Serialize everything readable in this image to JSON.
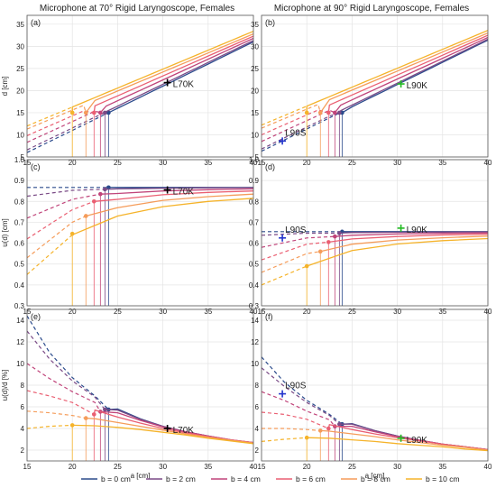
{
  "figure": {
    "left_title": "Microphone at 70° Rigid Laryngoscope, Females",
    "right_title": "Microphone at 90° Rigid Laryngoscope, Females"
  },
  "legend": {
    "items": [
      {
        "label": "b = 0 cm",
        "color": "#2b4b8c"
      },
      {
        "label": "b = 2 cm",
        "color": "#7a4a86"
      },
      {
        "label": "b = 4 cm",
        "color": "#c0447a"
      },
      {
        "label": "b = 6 cm",
        "color": "#ea5f72"
      },
      {
        "label": "b = 8 cm",
        "color": "#f59c5a"
      },
      {
        "label": "b = 10 cm",
        "color": "#f5b32a"
      }
    ]
  },
  "chart_data": [
    {
      "panel": "(a)",
      "type": "line",
      "xlabel": "",
      "ylabel": "d [cm]",
      "xlim": [
        15,
        40
      ],
      "ylim": [
        5,
        37
      ],
      "xticks": [
        15,
        20,
        25,
        30,
        35,
        40
      ],
      "yticks": [
        5,
        10,
        15,
        20,
        25,
        30,
        35
      ],
      "series": [
        {
          "b": 0,
          "x": [
            15,
            40
          ],
          "y": [
            6.0,
            31.0
          ],
          "marker": [
            24.0,
            15.0
          ]
        },
        {
          "b": 2,
          "x": [
            15,
            40
          ],
          "y": [
            6.6,
            31.3
          ],
          "marker": [
            23.6,
            15.0
          ]
        },
        {
          "b": 4,
          "x": [
            15,
            40
          ],
          "y": [
            8.3,
            31.8
          ],
          "marker": [
            23.1,
            15.0
          ]
        },
        {
          "b": 6,
          "x": [
            15,
            40
          ],
          "y": [
            9.8,
            32.3
          ],
          "marker": [
            22.4,
            15.0
          ]
        },
        {
          "b": 8,
          "x": [
            15,
            40
          ],
          "y": [
            11.3,
            32.8
          ],
          "marker": [
            21.5,
            15.0
          ]
        },
        {
          "b": 10,
          "x": [
            15,
            40
          ],
          "y": [
            12.0,
            33.4
          ],
          "marker": [
            20.0,
            15.0
          ]
        }
      ],
      "annotations": [
        {
          "label": "L70K",
          "x": 30.5,
          "y": 21.8,
          "color": "#000000"
        }
      ]
    },
    {
      "panel": "(b)",
      "type": "line",
      "xlabel": "",
      "ylabel": "",
      "xlim": [
        15,
        40
      ],
      "ylim": [
        5,
        37
      ],
      "xticks": [
        15,
        20,
        25,
        30,
        35,
        40
      ],
      "yticks": [
        5,
        10,
        15,
        20,
        25,
        30,
        35
      ],
      "series": [
        {
          "b": 0,
          "x": [
            15,
            40
          ],
          "y": [
            6.3,
            31.4
          ],
          "marker": [
            23.9,
            15.0
          ]
        },
        {
          "b": 2,
          "x": [
            15,
            40
          ],
          "y": [
            6.8,
            31.6
          ],
          "marker": [
            23.6,
            15.0
          ]
        },
        {
          "b": 4,
          "x": [
            15,
            40
          ],
          "y": [
            8.5,
            32.0
          ],
          "marker": [
            23.1,
            15.0
          ]
        },
        {
          "b": 6,
          "x": [
            15,
            40
          ],
          "y": [
            10.0,
            32.5
          ],
          "marker": [
            22.4,
            15.0
          ]
        },
        {
          "b": 8,
          "x": [
            15,
            40
          ],
          "y": [
            11.5,
            33.0
          ],
          "marker": [
            21.5,
            15.0
          ]
        },
        {
          "b": 10,
          "x": [
            15,
            40
          ],
          "y": [
            12.2,
            33.6
          ],
          "marker": [
            20.0,
            15.0
          ]
        }
      ],
      "annotations": [
        {
          "label": "L90K",
          "x": 30.4,
          "y": 21.5,
          "color": "#22bb22"
        },
        {
          "label": "L90S",
          "x": 17.3,
          "y": 8.6,
          "color": "#2233cc"
        }
      ]
    },
    {
      "panel": "(c)",
      "type": "line",
      "xlabel": "",
      "ylabel": "u(d) [cm]",
      "xlim": [
        15,
        40
      ],
      "ylim": [
        0.3,
        1.0
      ],
      "xticks": [
        15,
        20,
        25,
        30,
        35,
        40
      ],
      "yticks": [
        0.3,
        0.4,
        0.5,
        0.6,
        0.7,
        0.8,
        0.9,
        1.0
      ],
      "series": [
        {
          "b": 0,
          "x": [
            15,
            40
          ],
          "y": [
            0.867,
            0.867
          ],
          "marker": [
            24.0,
            0.867
          ]
        },
        {
          "b": 2,
          "x": [
            15,
            20,
            25,
            30,
            35,
            40
          ],
          "y": [
            0.825,
            0.853,
            0.86,
            0.863,
            0.865,
            0.866
          ],
          "marker": [
            23.6,
            0.858
          ]
        },
        {
          "b": 4,
          "x": [
            15,
            20,
            25,
            30,
            35,
            40
          ],
          "y": [
            0.72,
            0.81,
            0.838,
            0.85,
            0.856,
            0.86
          ],
          "marker": [
            23.1,
            0.835
          ]
        },
        {
          "b": 6,
          "x": [
            15,
            20,
            25,
            30,
            35,
            40
          ],
          "y": [
            0.62,
            0.76,
            0.81,
            0.832,
            0.843,
            0.85
          ],
          "marker": [
            22.4,
            0.8
          ]
        },
        {
          "b": 8,
          "x": [
            15,
            20,
            25,
            30,
            35,
            40
          ],
          "y": [
            0.53,
            0.7,
            0.77,
            0.805,
            0.823,
            0.835
          ],
          "marker": [
            21.5,
            0.73
          ]
        },
        {
          "b": 10,
          "x": [
            15,
            20,
            25,
            30,
            35,
            40
          ],
          "y": [
            0.45,
            0.64,
            0.73,
            0.775,
            0.8,
            0.815
          ],
          "marker": [
            20.0,
            0.645
          ]
        }
      ],
      "annotations": [
        {
          "label": "L70K",
          "x": 30.5,
          "y": 0.855,
          "color": "#000000"
        }
      ]
    },
    {
      "panel": "(d)",
      "type": "line",
      "xlabel": "",
      "ylabel": "",
      "xlim": [
        15,
        40
      ],
      "ylim": [
        0.3,
        1.0
      ],
      "xticks": [
        15,
        20,
        25,
        30,
        35,
        40
      ],
      "yticks": [
        0.3,
        0.4,
        0.5,
        0.6,
        0.7,
        0.8,
        0.9,
        1.0
      ],
      "series": [
        {
          "b": 0,
          "x": [
            15,
            40
          ],
          "y": [
            0.655,
            0.655
          ],
          "marker": [
            23.9,
            0.655
          ]
        },
        {
          "b": 2,
          "x": [
            15,
            20,
            25,
            30,
            35,
            40
          ],
          "y": [
            0.638,
            0.648,
            0.651,
            0.652,
            0.653,
            0.654
          ],
          "marker": [
            23.6,
            0.648
          ]
        },
        {
          "b": 4,
          "x": [
            15,
            20,
            25,
            30,
            35,
            40
          ],
          "y": [
            0.58,
            0.625,
            0.638,
            0.644,
            0.647,
            0.649
          ],
          "marker": [
            23.1,
            0.632
          ]
        },
        {
          "b": 6,
          "x": [
            15,
            20,
            25,
            30,
            35,
            40
          ],
          "y": [
            0.52,
            0.595,
            0.62,
            0.632,
            0.639,
            0.643
          ],
          "marker": [
            22.4,
            0.605
          ]
        },
        {
          "b": 8,
          "x": [
            15,
            20,
            25,
            30,
            35,
            40
          ],
          "y": [
            0.46,
            0.55,
            0.595,
            0.615,
            0.626,
            0.634
          ],
          "marker": [
            21.5,
            0.56
          ]
        },
        {
          "b": 10,
          "x": [
            15,
            20,
            25,
            30,
            35,
            40
          ],
          "y": [
            0.4,
            0.49,
            0.565,
            0.596,
            0.612,
            0.622
          ],
          "marker": [
            20.0,
            0.49
          ]
        }
      ],
      "annotations": [
        {
          "label": "L90K",
          "x": 30.4,
          "y": 0.672,
          "color": "#22bb22"
        },
        {
          "label": "L90S",
          "x": 17.3,
          "y": 0.625,
          "color": "#2233cc"
        }
      ]
    },
    {
      "panel": "(e)",
      "type": "line",
      "xlabel": "a [cm]",
      "ylabel": "u(d)/d [%]",
      "xlim": [
        15,
        40
      ],
      "ylim": [
        1,
        15
      ],
      "xticks": [
        15,
        20,
        25,
        30,
        35,
        40
      ],
      "yticks": [
        2,
        4,
        6,
        8,
        10,
        12,
        14
      ],
      "series": [
        {
          "b": 0,
          "x": [
            15,
            17.5,
            20,
            22.5,
            25,
            27.5,
            30,
            32.5,
            35,
            37.5,
            40
          ],
          "y": [
            14.4,
            11.0,
            8.7,
            7.0,
            5.8,
            4.9,
            4.2,
            3.7,
            3.3,
            2.9,
            2.7
          ],
          "marker": [
            24.0,
            5.75
          ]
        },
        {
          "b": 2,
          "x": [
            15,
            17.5,
            20,
            22.5,
            25,
            27.5,
            30,
            32.5,
            35,
            37.5,
            40
          ],
          "y": [
            13.0,
            10.4,
            8.4,
            6.9,
            5.7,
            4.85,
            4.2,
            3.7,
            3.3,
            2.95,
            2.7
          ],
          "marker": [
            23.6,
            5.75
          ]
        },
        {
          "b": 4,
          "x": [
            15,
            17.5,
            20,
            22.5,
            25,
            27.5,
            30,
            32.5,
            35,
            37.5,
            40
          ],
          "y": [
            10.0,
            8.6,
            7.4,
            6.4,
            5.45,
            4.75,
            4.15,
            3.7,
            3.3,
            2.95,
            2.7
          ],
          "marker": [
            23.1,
            5.55
          ]
        },
        {
          "b": 6,
          "x": [
            15,
            17.5,
            20,
            22.5,
            25,
            27.5,
            30,
            32.5,
            35,
            37.5,
            40
          ],
          "y": [
            7.5,
            7.0,
            6.4,
            5.7,
            5.05,
            4.5,
            4.0,
            3.6,
            3.25,
            2.95,
            2.7
          ],
          "marker": [
            22.4,
            5.3
          ]
        },
        {
          "b": 8,
          "x": [
            15,
            17.5,
            20,
            22.5,
            25,
            27.5,
            30,
            32.5,
            35,
            37.5,
            40
          ],
          "y": [
            5.6,
            5.45,
            5.2,
            4.9,
            4.55,
            4.2,
            3.85,
            3.5,
            3.2,
            2.9,
            2.65
          ],
          "marker": [
            21.5,
            4.95
          ]
        },
        {
          "b": 10,
          "x": [
            15,
            17.5,
            20,
            22.5,
            25,
            27.5,
            30,
            32.5,
            35,
            37.5,
            40
          ],
          "y": [
            4.0,
            4.2,
            4.3,
            4.25,
            4.1,
            3.9,
            3.65,
            3.4,
            3.1,
            2.85,
            2.6
          ],
          "marker": [
            20.0,
            4.3
          ]
        }
      ],
      "annotations": [
        {
          "label": "L70K",
          "x": 30.5,
          "y": 4.0,
          "color": "#000000"
        }
      ]
    },
    {
      "panel": "(f)",
      "type": "line",
      "xlabel": "a [cm]",
      "ylabel": "",
      "xlim": [
        15,
        40
      ],
      "ylim": [
        1,
        15
      ],
      "xticks": [
        15,
        20,
        25,
        30,
        35,
        40
      ],
      "yticks": [
        2,
        4,
        6,
        8,
        10,
        12,
        14
      ],
      "series": [
        {
          "b": 0,
          "x": [
            15,
            17.5,
            20,
            22.5,
            25,
            27.5,
            30,
            32.5,
            35,
            37.5,
            40
          ],
          "y": [
            10.6,
            8.3,
            6.6,
            5.3,
            4.45,
            3.8,
            3.3,
            2.9,
            2.55,
            2.3,
            2.05
          ],
          "marker": [
            23.9,
            4.4
          ]
        },
        {
          "b": 2,
          "x": [
            15,
            17.5,
            20,
            22.5,
            25,
            27.5,
            30,
            32.5,
            35,
            37.5,
            40
          ],
          "y": [
            9.6,
            7.9,
            6.4,
            5.2,
            4.4,
            3.8,
            3.3,
            2.9,
            2.55,
            2.3,
            2.05
          ],
          "marker": [
            23.6,
            4.4
          ]
        },
        {
          "b": 4,
          "x": [
            15,
            17.5,
            20,
            22.5,
            25,
            27.5,
            30,
            32.5,
            35,
            37.5,
            40
          ],
          "y": [
            7.4,
            6.6,
            5.6,
            4.8,
            4.2,
            3.7,
            3.25,
            2.9,
            2.55,
            2.3,
            2.05
          ],
          "marker": [
            23.1,
            4.2
          ]
        },
        {
          "b": 6,
          "x": [
            15,
            17.5,
            20,
            22.5,
            25,
            27.5,
            30,
            32.5,
            35,
            37.5,
            40
          ],
          "y": [
            5.5,
            5.3,
            4.85,
            4.35,
            3.9,
            3.5,
            3.15,
            2.85,
            2.55,
            2.3,
            2.05
          ],
          "marker": [
            22.4,
            4.0
          ]
        },
        {
          "b": 8,
          "x": [
            15,
            17.5,
            20,
            22.5,
            25,
            27.5,
            30,
            32.5,
            35,
            37.5,
            40
          ],
          "y": [
            4.0,
            4.0,
            3.9,
            3.75,
            3.5,
            3.25,
            2.95,
            2.7,
            2.45,
            2.25,
            2.0
          ],
          "marker": [
            21.5,
            3.8
          ]
        },
        {
          "b": 10,
          "x": [
            15,
            17.5,
            20,
            22.5,
            25,
            27.5,
            30,
            32.5,
            35,
            37.5,
            40
          ],
          "y": [
            2.8,
            3.0,
            3.15,
            3.1,
            2.95,
            2.8,
            2.6,
            2.45,
            2.3,
            2.1,
            1.95
          ],
          "marker": [
            20.0,
            3.15
          ]
        }
      ],
      "annotations": [
        {
          "label": "L90K",
          "x": 30.4,
          "y": 3.1,
          "color": "#22bb22"
        },
        {
          "label": "L90S",
          "x": 17.3,
          "y": 7.2,
          "color": "#2233cc"
        }
      ]
    }
  ]
}
